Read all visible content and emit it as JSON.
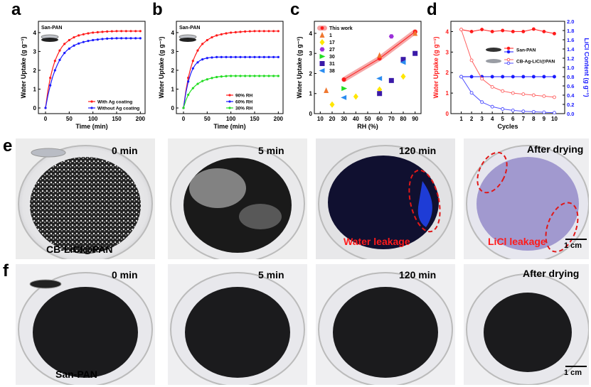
{
  "panels": {
    "a": "a",
    "b": "b",
    "c": "c",
    "d": "d",
    "e": "e",
    "f": "f"
  },
  "chart_data": [
    {
      "id": "a",
      "type": "line",
      "title": "San-PAN",
      "xlabel": "Time (min)",
      "ylabel": "Water Uptake (g g⁻¹)",
      "xlim": [
        -15,
        210
      ],
      "ylim": [
        -0.3,
        4.6
      ],
      "xticks": [
        0,
        50,
        100,
        150,
        200
      ],
      "yticks": [
        0,
        1,
        2,
        3,
        4
      ],
      "x": [
        0,
        5,
        10,
        15,
        20,
        25,
        30,
        35,
        40,
        45,
        50,
        55,
        60,
        65,
        70,
        75,
        80,
        85,
        90,
        95,
        100,
        105,
        110,
        115,
        120,
        125,
        130,
        135,
        140,
        145,
        150,
        155,
        160,
        165,
        170,
        175,
        180,
        185,
        190,
        195,
        200
      ],
      "series": [
        {
          "name": "With Ag coating",
          "color": "#ff1a1a",
          "values": [
            0,
            0.9,
            1.6,
            2.1,
            2.5,
            2.8,
            3.05,
            3.25,
            3.4,
            3.5,
            3.6,
            3.68,
            3.75,
            3.8,
            3.85,
            3.88,
            3.91,
            3.94,
            3.96,
            3.98,
            4.0,
            4.01,
            4.02,
            4.03,
            4.04,
            4.05,
            4.06,
            4.06,
            4.07,
            4.07,
            4.08,
            4.08,
            4.08,
            4.08,
            4.08,
            4.08,
            4.08,
            4.08,
            4.08,
            4.08,
            4.08
          ]
        },
        {
          "name": "Without Ag coating",
          "color": "#1a1aff",
          "values": [
            0,
            0.65,
            1.2,
            1.65,
            2.0,
            2.3,
            2.55,
            2.75,
            2.92,
            3.05,
            3.15,
            3.24,
            3.31,
            3.37,
            3.42,
            3.46,
            3.5,
            3.53,
            3.56,
            3.58,
            3.6,
            3.62,
            3.63,
            3.65,
            3.66,
            3.67,
            3.68,
            3.68,
            3.69,
            3.69,
            3.7,
            3.7,
            3.7,
            3.7,
            3.7,
            3.7,
            3.7,
            3.7,
            3.7,
            3.7,
            3.7
          ]
        }
      ],
      "legend_position": "bottom-right"
    },
    {
      "id": "b",
      "type": "line",
      "title": "San-PAN",
      "xlabel": "Time (min)",
      "ylabel": "Water Uptake (g g⁻¹)",
      "xlim": [
        -15,
        210
      ],
      "ylim": [
        -0.3,
        4.6
      ],
      "xticks": [
        0,
        50,
        100,
        150,
        200
      ],
      "yticks": [
        0,
        1,
        2,
        3,
        4
      ],
      "x": [
        0,
        5,
        10,
        15,
        20,
        25,
        30,
        35,
        40,
        45,
        50,
        55,
        60,
        65,
        70,
        75,
        80,
        85,
        90,
        95,
        100,
        105,
        110,
        115,
        120,
        125,
        130,
        135,
        140,
        145,
        150,
        155,
        160,
        165,
        170,
        175,
        180,
        185,
        190,
        195,
        200
      ],
      "series": [
        {
          "name": "90% RH",
          "color": "#ff1a1a",
          "values": [
            0,
            0.9,
            1.6,
            2.1,
            2.5,
            2.8,
            3.05,
            3.25,
            3.4,
            3.5,
            3.6,
            3.68,
            3.75,
            3.8,
            3.85,
            3.88,
            3.91,
            3.94,
            3.96,
            3.98,
            4.0,
            4.01,
            4.02,
            4.03,
            4.04,
            4.05,
            4.06,
            4.06,
            4.07,
            4.07,
            4.08,
            4.08,
            4.08,
            4.08,
            4.08,
            4.08,
            4.08,
            4.08,
            4.08,
            4.08,
            4.08
          ]
        },
        {
          "name": "60% RH",
          "color": "#1a1aff",
          "values": [
            0,
            0.8,
            1.4,
            1.8,
            2.1,
            2.3,
            2.42,
            2.52,
            2.58,
            2.62,
            2.65,
            2.67,
            2.68,
            2.69,
            2.7,
            2.7,
            2.7,
            2.7,
            2.7,
            2.7,
            2.7,
            2.7,
            2.7,
            2.7,
            2.7,
            2.7,
            2.7,
            2.7,
            2.7,
            2.7,
            2.7,
            2.7,
            2.7,
            2.7,
            2.7,
            2.7,
            2.7,
            2.7,
            2.7,
            2.7,
            2.7
          ]
        },
        {
          "name": "30% RH",
          "color": "#22dd22",
          "values": [
            0,
            0.4,
            0.7,
            0.9,
            1.05,
            1.18,
            1.28,
            1.36,
            1.43,
            1.48,
            1.52,
            1.56,
            1.59,
            1.62,
            1.64,
            1.66,
            1.67,
            1.68,
            1.69,
            1.7,
            1.7,
            1.7,
            1.7,
            1.7,
            1.7,
            1.7,
            1.7,
            1.7,
            1.7,
            1.7,
            1.7,
            1.7,
            1.7,
            1.7,
            1.7,
            1.7,
            1.7,
            1.7,
            1.7,
            1.7,
            1.7
          ]
        }
      ],
      "legend_position": "bottom-right"
    },
    {
      "id": "c",
      "type": "scatter",
      "xlabel": "RH (%)",
      "ylabel": "Water Uptake (g g⁻¹)",
      "xlim": [
        5,
        95
      ],
      "ylim": [
        0,
        4.6
      ],
      "xticks": [
        10,
        20,
        30,
        40,
        50,
        60,
        70,
        80,
        90
      ],
      "yticks": [
        0,
        1,
        2,
        3,
        4
      ],
      "this_work": {
        "name": "This work",
        "color": "#ff1a1a",
        "x": [
          30,
          60,
          90
        ],
        "y": [
          1.7,
          2.75,
          4.08
        ]
      },
      "series": [
        {
          "name": "1",
          "color": "#f07830",
          "marker": "triangle-up",
          "points": [
            [
              15,
              1.15
            ],
            [
              60,
              2.9
            ],
            [
              90,
              4.0
            ]
          ]
        },
        {
          "name": "17",
          "color": "#ffe600",
          "marker": "diamond",
          "points": [
            [
              20,
              0.45
            ],
            [
              40,
              0.85
            ],
            [
              60,
              1.2
            ],
            [
              80,
              1.85
            ]
          ]
        },
        {
          "name": "27",
          "color": "#9b30d9",
          "marker": "hexagon",
          "points": [
            [
              70,
              3.85
            ]
          ]
        },
        {
          "name": "30",
          "color": "#22dd22",
          "marker": "triangle-right",
          "points": [
            [
              30,
              1.25
            ]
          ]
        },
        {
          "name": "31",
          "color": "#3a1aa8",
          "marker": "square",
          "points": [
            [
              60,
              1.0
            ],
            [
              70,
              1.65
            ],
            [
              80,
              2.7
            ],
            [
              90,
              3.0
            ]
          ]
        },
        {
          "name": "38",
          "color": "#2a8cf0",
          "marker": "triangle-left",
          "points": [
            [
              30,
              0.8
            ],
            [
              60,
              1.75
            ],
            [
              80,
              2.55
            ]
          ]
        }
      ]
    },
    {
      "id": "d",
      "type": "line",
      "xlabel": "Cycles",
      "ylabel_left": "Water Uptake (g g⁻¹)",
      "ylabel_right": "LiCl Content (g g⁻¹)",
      "xlim": [
        0,
        11
      ],
      "ylim_left": [
        0,
        4.5
      ],
      "ylim_right": [
        0,
        2.0
      ],
      "xticks": [
        1,
        2,
        3,
        4,
        5,
        6,
        7,
        8,
        9,
        10
      ],
      "yticks_left": [
        0,
        1,
        2,
        3,
        4
      ],
      "yticks_right": [
        0.0,
        0.2,
        0.4,
        0.6,
        0.8,
        1.0,
        1.2,
        1.4,
        1.6,
        1.8,
        2.0
      ],
      "x": [
        1,
        2,
        3,
        4,
        5,
        6,
        7,
        8,
        9,
        10
      ],
      "series": [
        {
          "name": "San-PAN",
          "axis": "left",
          "color": "#ff1a1a",
          "filled": true,
          "values": [
            4.1,
            4.0,
            4.1,
            4.0,
            4.05,
            4.0,
            4.0,
            4.12,
            4.0,
            3.9
          ]
        },
        {
          "name": "San-PAN LiCl",
          "axis": "right",
          "color": "#1a1aff",
          "filled": true,
          "values": [
            0.8,
            0.8,
            0.8,
            0.8,
            0.8,
            0.8,
            0.8,
            0.8,
            0.8,
            0.8
          ]
        },
        {
          "name": "CB-Ag-LiCl@PAN",
          "axis": "left",
          "color": "#ff6060",
          "filled": false,
          "values": [
            4.1,
            2.6,
            1.7,
            1.3,
            1.1,
            1.0,
            0.95,
            0.9,
            0.85,
            0.8
          ]
        },
        {
          "name": "CB-Ag-LiCl@PAN LiCl",
          "axis": "right",
          "color": "#5050ff",
          "filled": false,
          "values": [
            0.8,
            0.45,
            0.25,
            0.15,
            0.1,
            0.07,
            0.05,
            0.04,
            0.03,
            0.02
          ]
        }
      ],
      "legend_labels": [
        "San-PAN",
        "CB-Ag-LiCl@PAN"
      ]
    }
  ],
  "row_e": {
    "times": [
      "0 min",
      "5 min",
      "120 min",
      "After drying"
    ],
    "sample_label": "CB-LiCl@PAN",
    "water_leakage": "Water leakage",
    "licl_leakage": "LiCl leakage",
    "scale": "1 cm"
  },
  "row_f": {
    "times": [
      "0 min",
      "5 min",
      "120 min",
      "After drying"
    ],
    "sample_label": "San-PAN",
    "scale": "1 cm"
  }
}
